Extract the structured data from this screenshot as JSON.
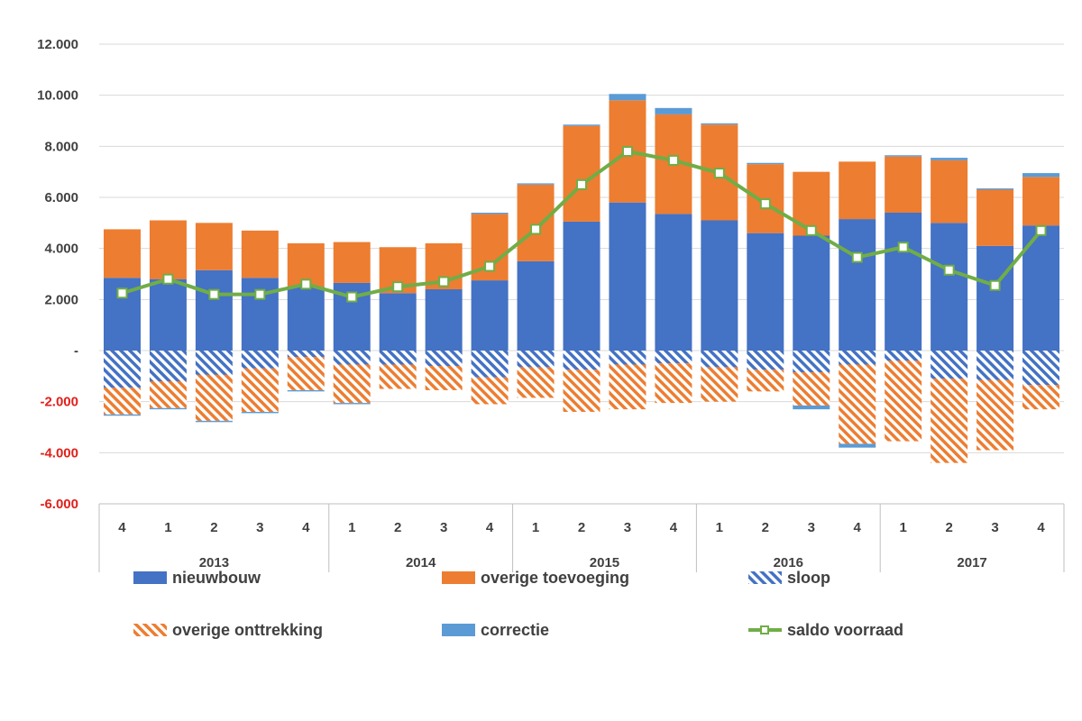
{
  "chart_data": {
    "type": "bar",
    "stacked": true,
    "categories": [
      "4",
      "1",
      "2",
      "3",
      "4",
      "1",
      "2",
      "3",
      "4",
      "1",
      "2",
      "3",
      "4",
      "1",
      "2",
      "3",
      "4",
      "1",
      "2",
      "3",
      "4"
    ],
    "year_groups": [
      {
        "label": "2013",
        "start": 0,
        "end": 4
      },
      {
        "label": "2014",
        "start": 5,
        "end": 8
      },
      {
        "label": "2015",
        "start": 9,
        "end": 12
      },
      {
        "label": "2016",
        "start": 13,
        "end": 16
      },
      {
        "label": "2017",
        "start": 17,
        "end": 20
      }
    ],
    "ylim": [
      -6000,
      12000
    ],
    "yticks": [
      {
        "value": 12000,
        "label": "12.000",
        "color": "#404040"
      },
      {
        "value": 10000,
        "label": "10.000",
        "color": "#404040"
      },
      {
        "value": 8000,
        "label": "8.000",
        "color": "#404040"
      },
      {
        "value": 6000,
        "label": "6.000",
        "color": "#404040"
      },
      {
        "value": 4000,
        "label": "4.000",
        "color": "#404040"
      },
      {
        "value": 2000,
        "label": "2.000",
        "color": "#404040"
      },
      {
        "value": 0,
        "label": "-",
        "color": "#404040"
      },
      {
        "value": -2000,
        "label": "-2.000",
        "color": "#e0201b"
      },
      {
        "value": -4000,
        "label": "-4.000",
        "color": "#e0201b"
      },
      {
        "value": -6000,
        "label": "-6.000",
        "color": "#e0201b"
      }
    ],
    "grid": true,
    "legend_position": "bottom",
    "series": [
      {
        "name": "nieuwbouw",
        "kind": "bar",
        "pattern": "solid",
        "color": "#4472c4",
        "values": [
          2850,
          2800,
          3150,
          2850,
          2500,
          2650,
          2250,
          2400,
          2750,
          3500,
          5050,
          5800,
          5350,
          5100,
          4600,
          4500,
          5150,
          5400,
          5000,
          4100,
          4900
        ]
      },
      {
        "name": "overige toevoeging",
        "kind": "bar",
        "pattern": "solid",
        "color": "#ed7d31",
        "values": [
          1900,
          2300,
          1850,
          1850,
          1700,
          1600,
          1800,
          1800,
          2600,
          3000,
          3750,
          4000,
          3900,
          3750,
          2700,
          2500,
          2250,
          2200,
          2450,
          2200,
          1900
        ]
      },
      {
        "name": "sloop",
        "kind": "bar",
        "pattern": "hatch",
        "color": "#4472c4",
        "values": [
          -1450,
          -1200,
          -950,
          -700,
          -250,
          -550,
          -550,
          -600,
          -1050,
          -650,
          -750,
          -550,
          -500,
          -650,
          -750,
          -850,
          -550,
          -400,
          -1100,
          -1150,
          -1350
        ]
      },
      {
        "name": "overige onttrekking",
        "kind": "bar",
        "pattern": "hatch",
        "color": "#ed7d31",
        "values": [
          -1050,
          -1050,
          -1800,
          -1700,
          -1300,
          -1500,
          -950,
          -950,
          -1050,
          -1200,
          -1650,
          -1750,
          -1550,
          -1350,
          -850,
          -1300,
          -3100,
          -3150,
          -3300,
          -2750,
          -950
        ]
      },
      {
        "name": "correctie",
        "kind": "bar",
        "pattern": "solid",
        "color": "#5b9bd5",
        "values": [
          -50,
          -50,
          -50,
          -50,
          -50,
          -50,
          0,
          0,
          50,
          50,
          50,
          250,
          250,
          50,
          50,
          -150,
          -150,
          50,
          100,
          50,
          150
        ]
      },
      {
        "name": "saldo voorraad",
        "kind": "line",
        "color": "#70ad47",
        "values": [
          2250,
          2800,
          2200,
          2200,
          2600,
          2100,
          2500,
          2700,
          3300,
          4750,
          6500,
          7800,
          7450,
          6950,
          5750,
          4700,
          3650,
          4050,
          3150,
          2550,
          4700
        ]
      }
    ]
  }
}
